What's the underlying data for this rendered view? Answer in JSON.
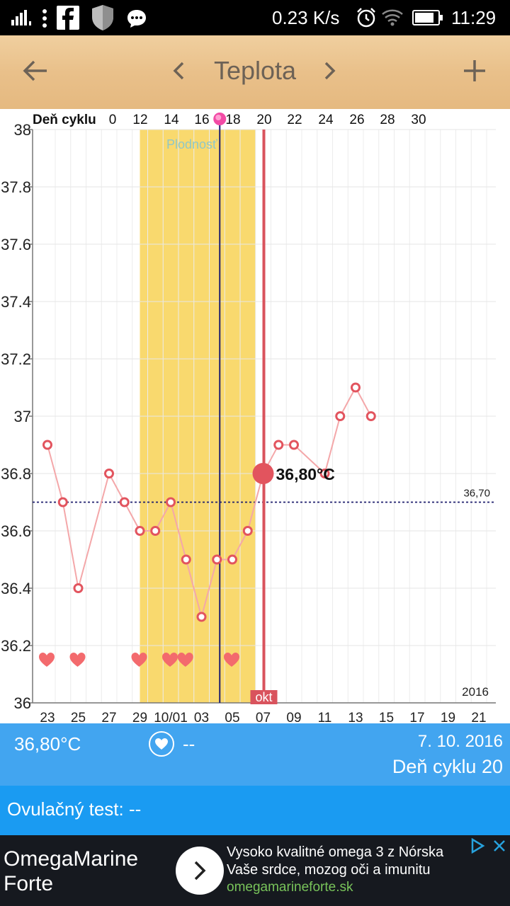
{
  "status_bar": {
    "speed": "0.23 K/s",
    "time": "11:29"
  },
  "toolbar": {
    "title": "Teplota",
    "back_icon": "arrow-left-icon",
    "prev_icon": "chevron-left-icon",
    "next_icon": "chevron-right-icon",
    "add_icon": "plus-icon"
  },
  "chart_data": {
    "type": "line",
    "top_axis_label": "Deň cyklu",
    "top_ticks": [
      "0",
      "12",
      "14",
      "16",
      "18",
      "20",
      "22",
      "24",
      "26",
      "28",
      "30"
    ],
    "bottom_ticks": [
      "23",
      "25",
      "27",
      "29",
      "10/01",
      "03",
      "05",
      "07",
      "09",
      "11",
      "13",
      "15",
      "17",
      "19",
      "21"
    ],
    "ylim": [
      36,
      38
    ],
    "y_ticks": [
      "36",
      "36.2",
      "36.4",
      "36.6",
      "36.8",
      "37",
      "37.2",
      "37.4",
      "37.6",
      "37.8",
      "38"
    ],
    "year_label": "2016",
    "month_label": "okt",
    "fertile_label": "Plodnosť",
    "coverline": {
      "value": 36.7,
      "label": "36,70"
    },
    "selected": {
      "day_index": 14,
      "value": 36.8,
      "label": "36,80°C"
    },
    "ovulation_day_index": 11,
    "temperatures": [
      36.9,
      36.7,
      36.4,
      null,
      36.8,
      36.7,
      36.6,
      36.6,
      36.7,
      36.5,
      36.3,
      36.5,
      36.5,
      36.6,
      36.8,
      36.9,
      36.9,
      null,
      36.8,
      37.0,
      37.1,
      37.0
    ],
    "hearts_day_indices": [
      0,
      2,
      6,
      8,
      9,
      12
    ],
    "fertile_window_days": [
      6,
      13
    ],
    "colors": {
      "line": "#f4a7a9",
      "marker": "#e2545e",
      "fertile": "#f9d96e",
      "selection": "#d9535d",
      "coverline": "#1e1e6e",
      "ovulation": "#1e1e6e",
      "heart": "#f36a6d"
    }
  },
  "info": {
    "temperature": "36,80°C",
    "heart_value": "--",
    "date": "7. 10. 2016",
    "cycle_day": "Deň cyklu 20"
  },
  "ovulation_test": {
    "label": "Ovulačný test: --"
  },
  "ad": {
    "brand": "OmegaMarine Forte",
    "headline_1": "Vysoko kvalitné omega 3 z Nórska",
    "headline_2": "Vaše srdce, mozog oči a imunitu",
    "url": "omegamarineforte.sk"
  }
}
